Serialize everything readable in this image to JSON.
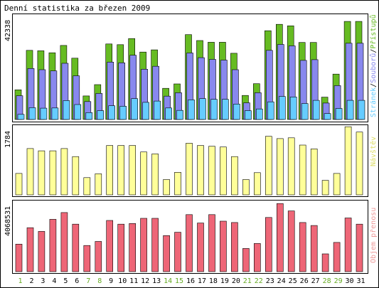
{
  "title": "Denní statistika za březen 2009",
  "colors": {
    "hits": "#66bb22",
    "files": "#8888ee",
    "pages": "#66ccff",
    "visits": "#ffff99",
    "kbytes": "#ee6677",
    "weekend_label": "#66aa22",
    "weekday_label": "#000000",
    "frame": "#000000"
  },
  "chart_data": [
    {
      "type": "bar",
      "title": "",
      "ymax_label": "42338",
      "legend_labels": [
        "Stránek",
        "Souborů",
        "Přístupů"
      ],
      "legend_separator": "/",
      "categories": [
        "1",
        "2",
        "3",
        "4",
        "5",
        "6",
        "7",
        "8",
        "9",
        "10",
        "11",
        "12",
        "13",
        "14",
        "15",
        "16",
        "17",
        "18",
        "19",
        "20",
        "21",
        "22",
        "23",
        "24",
        "25",
        "26",
        "27",
        "28",
        "29",
        "30",
        "31"
      ],
      "ylim": [
        0,
        42338
      ],
      "series": [
        {
          "name": "Přístupů",
          "values": [
            12100,
            28200,
            28000,
            27200,
            30200,
            25000,
            9600,
            14200,
            30800,
            30500,
            33000,
            27500,
            28400,
            12700,
            14500,
            34600,
            32200,
            31500,
            31500,
            27000,
            9800,
            14600,
            36200,
            38800,
            38200,
            31400,
            31400,
            9100,
            18500,
            40000,
            40000
          ]
        },
        {
          "name": "Souborů",
          "values": [
            9700,
            20800,
            20300,
            19800,
            22900,
            17800,
            7300,
            10600,
            23400,
            23100,
            26200,
            20500,
            21700,
            9500,
            10900,
            27100,
            25200,
            24500,
            24200,
            20300,
            6800,
            10900,
            28200,
            30600,
            30000,
            24100,
            24400,
            6700,
            13800,
            31100,
            31100
          ]
        },
        {
          "name": "Stránek",
          "values": [
            2100,
            4800,
            4600,
            4700,
            7700,
            6100,
            2800,
            3600,
            5600,
            5400,
            8500,
            7000,
            7500,
            4700,
            3700,
            8000,
            8500,
            8200,
            8200,
            6300,
            3600,
            4300,
            7200,
            9400,
            9200,
            6500,
            7800,
            2400,
            4500,
            7800,
            7800
          ]
        }
      ]
    },
    {
      "type": "bar",
      "title": "",
      "ymax_label": "1784",
      "legend_labels": [
        "Návštěv"
      ],
      "categories": [
        "1",
        "2",
        "3",
        "4",
        "5",
        "6",
        "7",
        "8",
        "9",
        "10",
        "11",
        "12",
        "13",
        "14",
        "15",
        "16",
        "17",
        "18",
        "19",
        "20",
        "21",
        "22",
        "23",
        "24",
        "25",
        "26",
        "27",
        "28",
        "29",
        "30",
        "31"
      ],
      "ylim": [
        0,
        1784
      ],
      "series": [
        {
          "name": "Návštěv",
          "values": [
            560,
            1210,
            1150,
            1150,
            1210,
            1000,
            450,
            550,
            1290,
            1290,
            1290,
            1120,
            1070,
            400,
            590,
            1350,
            1290,
            1270,
            1250,
            1000,
            400,
            580,
            1530,
            1470,
            1490,
            1300,
            1200,
            380,
            560,
            1780,
            1640
          ]
        }
      ]
    },
    {
      "type": "bar",
      "title": "",
      "ymax_label": "4068531",
      "legend_labels": [
        "Objem přenosu"
      ],
      "categories": [
        "1",
        "2",
        "3",
        "4",
        "5",
        "6",
        "7",
        "8",
        "9",
        "10",
        "11",
        "12",
        "13",
        "14",
        "15",
        "16",
        "17",
        "18",
        "19",
        "20",
        "21",
        "22",
        "23",
        "24",
        "25",
        "26",
        "27",
        "28",
        "29",
        "30",
        "31"
      ],
      "ylim": [
        0,
        4068531
      ],
      "series": [
        {
          "name": "Objem přenosu",
          "values": [
            1640000,
            2620000,
            2400000,
            3120000,
            3520000,
            2830000,
            1560000,
            1800000,
            3050000,
            2830000,
            2870000,
            3180000,
            3180000,
            2150000,
            2350000,
            3400000,
            2900000,
            3400000,
            3010000,
            2930000,
            1380000,
            1680000,
            3230000,
            4060000,
            3620000,
            2930000,
            2750000,
            1060000,
            1740000,
            3200000,
            2830000
          ]
        }
      ]
    }
  ],
  "weekend_days": [
    "1",
    "7",
    "8",
    "14",
    "15",
    "21",
    "22",
    "28",
    "29"
  ]
}
